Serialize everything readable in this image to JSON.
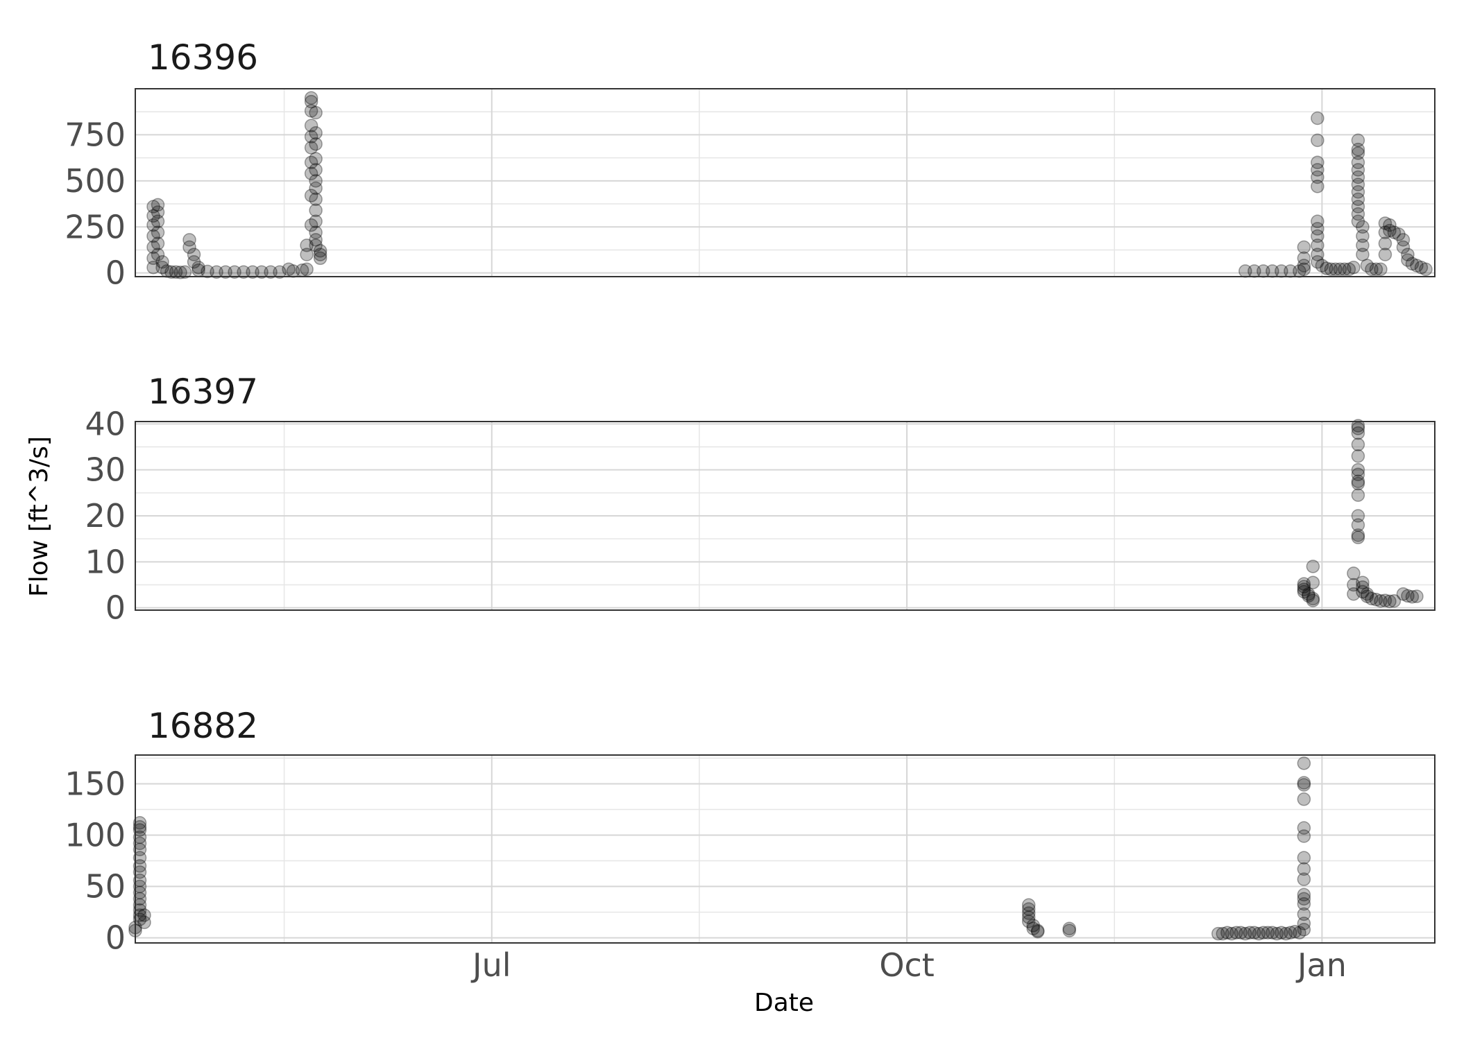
{
  "chart_data": {
    "type": "scatter",
    "xlabel": "Date",
    "ylabel": "Flow [ft^3/s]",
    "x_ticks": [
      "Jul",
      "Oct",
      "Jan"
    ],
    "x_tick_dates": [
      "2023-07-01",
      "2023-10-01",
      "2024-01-01"
    ],
    "xlim": [
      "2023-04-13",
      "2024-01-26"
    ],
    "grid": true,
    "point_color": "#000000",
    "point_opacity": 0.25,
    "facets": [
      {
        "title": "16396",
        "ylim": [
          -20,
          1000
        ],
        "yticks": [
          0,
          250,
          500,
          750
        ],
        "points": [
          [
            "2023-04-17",
            30
          ],
          [
            "2023-04-17",
            80
          ],
          [
            "2023-04-17",
            140
          ],
          [
            "2023-04-17",
            200
          ],
          [
            "2023-04-17",
            260
          ],
          [
            "2023-04-17",
            310
          ],
          [
            "2023-04-17",
            360
          ],
          [
            "2023-04-18",
            370
          ],
          [
            "2023-04-18",
            330
          ],
          [
            "2023-04-18",
            280
          ],
          [
            "2023-04-18",
            220
          ],
          [
            "2023-04-18",
            160
          ],
          [
            "2023-04-18",
            100
          ],
          [
            "2023-04-19",
            60
          ],
          [
            "2023-04-19",
            30
          ],
          [
            "2023-04-20",
            10
          ],
          [
            "2023-04-21",
            5
          ],
          [
            "2023-04-22",
            5
          ],
          [
            "2023-04-23",
            3
          ],
          [
            "2023-04-24",
            5
          ],
          [
            "2023-04-25",
            180
          ],
          [
            "2023-04-25",
            140
          ],
          [
            "2023-04-26",
            100
          ],
          [
            "2023-04-26",
            60
          ],
          [
            "2023-04-27",
            30
          ],
          [
            "2023-04-27",
            15
          ],
          [
            "2023-04-29",
            8
          ],
          [
            "2023-05-01",
            5
          ],
          [
            "2023-05-03",
            5
          ],
          [
            "2023-05-05",
            5
          ],
          [
            "2023-05-07",
            5
          ],
          [
            "2023-05-09",
            5
          ],
          [
            "2023-05-11",
            5
          ],
          [
            "2023-05-13",
            5
          ],
          [
            "2023-05-15",
            5
          ],
          [
            "2023-05-17",
            20
          ],
          [
            "2023-05-18",
            10
          ],
          [
            "2023-05-20",
            15
          ],
          [
            "2023-05-21",
            20
          ],
          [
            "2023-05-22",
            950
          ],
          [
            "2023-05-22",
            930
          ],
          [
            "2023-05-22",
            880
          ],
          [
            "2023-05-22",
            800
          ],
          [
            "2023-05-22",
            740
          ],
          [
            "2023-05-22",
            680
          ],
          [
            "2023-05-22",
            600
          ],
          [
            "2023-05-22",
            540
          ],
          [
            "2023-05-22",
            420
          ],
          [
            "2023-05-22",
            260
          ],
          [
            "2023-05-21",
            150
          ],
          [
            "2023-05-21",
            100
          ],
          [
            "2023-05-23",
            870
          ],
          [
            "2023-05-23",
            760
          ],
          [
            "2023-05-23",
            700
          ],
          [
            "2023-05-23",
            620
          ],
          [
            "2023-05-23",
            560
          ],
          [
            "2023-05-23",
            500
          ],
          [
            "2023-05-23",
            460
          ],
          [
            "2023-05-23",
            400
          ],
          [
            "2023-05-23",
            340
          ],
          [
            "2023-05-23",
            280
          ],
          [
            "2023-05-23",
            220
          ],
          [
            "2023-05-23",
            180
          ],
          [
            "2023-05-23",
            150
          ],
          [
            "2023-05-24",
            120
          ],
          [
            "2023-05-24",
            100
          ],
          [
            "2023-05-24",
            80
          ],
          [
            "2023-12-15",
            10
          ],
          [
            "2023-12-17",
            10
          ],
          [
            "2023-12-19",
            10
          ],
          [
            "2023-12-21",
            10
          ],
          [
            "2023-12-23",
            10
          ],
          [
            "2023-12-25",
            10
          ],
          [
            "2023-12-27",
            10
          ],
          [
            "2023-12-28",
            20
          ],
          [
            "2023-12-28",
            40
          ],
          [
            "2023-12-28",
            80
          ],
          [
            "2023-12-28",
            140
          ],
          [
            "2023-12-31",
            840
          ],
          [
            "2023-12-31",
            720
          ],
          [
            "2023-12-31",
            600
          ],
          [
            "2023-12-31",
            560
          ],
          [
            "2023-12-31",
            520
          ],
          [
            "2023-12-31",
            470
          ],
          [
            "2023-12-31",
            280
          ],
          [
            "2023-12-31",
            240
          ],
          [
            "2023-12-31",
            200
          ],
          [
            "2023-12-31",
            150
          ],
          [
            "2023-12-31",
            100
          ],
          [
            "2023-12-31",
            60
          ],
          [
            "2024-01-01",
            40
          ],
          [
            "2024-01-02",
            25
          ],
          [
            "2024-01-03",
            20
          ],
          [
            "2024-01-04",
            20
          ],
          [
            "2024-01-05",
            20
          ],
          [
            "2024-01-06",
            20
          ],
          [
            "2024-01-07",
            20
          ],
          [
            "2024-01-08",
            30
          ],
          [
            "2024-01-09",
            720
          ],
          [
            "2024-01-09",
            670
          ],
          [
            "2024-01-09",
            650
          ],
          [
            "2024-01-09",
            600
          ],
          [
            "2024-01-09",
            560
          ],
          [
            "2024-01-09",
            520
          ],
          [
            "2024-01-09",
            480
          ],
          [
            "2024-01-09",
            440
          ],
          [
            "2024-01-09",
            400
          ],
          [
            "2024-01-09",
            360
          ],
          [
            "2024-01-09",
            320
          ],
          [
            "2024-01-09",
            280
          ],
          [
            "2024-01-10",
            250
          ],
          [
            "2024-01-10",
            200
          ],
          [
            "2024-01-10",
            150
          ],
          [
            "2024-01-10",
            100
          ],
          [
            "2024-01-11",
            40
          ],
          [
            "2024-01-12",
            20
          ],
          [
            "2024-01-13",
            20
          ],
          [
            "2024-01-14",
            20
          ],
          [
            "2024-01-15",
            100
          ],
          [
            "2024-01-15",
            160
          ],
          [
            "2024-01-15",
            220
          ],
          [
            "2024-01-15",
            270
          ],
          [
            "2024-01-16",
            260
          ],
          [
            "2024-01-16",
            230
          ],
          [
            "2024-01-17",
            220
          ],
          [
            "2024-01-18",
            210
          ],
          [
            "2024-01-19",
            180
          ],
          [
            "2024-01-19",
            140
          ],
          [
            "2024-01-20",
            100
          ],
          [
            "2024-01-20",
            70
          ],
          [
            "2024-01-21",
            50
          ],
          [
            "2024-01-22",
            40
          ],
          [
            "2024-01-23",
            30
          ],
          [
            "2024-01-24",
            20
          ]
        ]
      },
      {
        "title": "16397",
        "ylim": [
          -0.5,
          40.5
        ],
        "yticks": [
          0,
          10,
          20,
          30,
          40
        ],
        "points": [
          [
            "2023-12-28",
            5.2
          ],
          [
            "2023-12-28",
            4.6
          ],
          [
            "2023-12-28",
            4.0
          ],
          [
            "2023-12-28",
            3.5
          ],
          [
            "2023-12-29",
            3.0
          ],
          [
            "2023-12-29",
            2.6
          ],
          [
            "2023-12-30",
            9.0
          ],
          [
            "2023-12-30",
            5.5
          ],
          [
            "2023-12-30",
            2.0
          ],
          [
            "2023-12-30",
            1.6
          ],
          [
            "2024-01-09",
            39.6
          ],
          [
            "2024-01-09",
            39.0
          ],
          [
            "2024-01-09",
            38.0
          ],
          [
            "2024-01-09",
            35.5
          ],
          [
            "2024-01-09",
            33.0
          ],
          [
            "2024-01-09",
            30.0
          ],
          [
            "2024-01-09",
            29.0
          ],
          [
            "2024-01-09",
            27.5
          ],
          [
            "2024-01-09",
            27.0
          ],
          [
            "2024-01-09",
            24.5
          ],
          [
            "2024-01-09",
            20.0
          ],
          [
            "2024-01-09",
            18.0
          ],
          [
            "2024-01-09",
            15.8
          ],
          [
            "2024-01-09",
            15.3
          ],
          [
            "2024-01-08",
            7.5
          ],
          [
            "2024-01-08",
            5.0
          ],
          [
            "2024-01-08",
            3.0
          ],
          [
            "2024-01-10",
            5.5
          ],
          [
            "2024-01-10",
            4.5
          ],
          [
            "2024-01-10",
            3.5
          ],
          [
            "2024-01-11",
            3.0
          ],
          [
            "2024-01-11",
            2.5
          ],
          [
            "2024-01-12",
            2.0
          ],
          [
            "2024-01-13",
            1.8
          ],
          [
            "2024-01-14",
            1.5
          ],
          [
            "2024-01-15",
            1.6
          ],
          [
            "2024-01-16",
            1.4
          ],
          [
            "2024-01-17",
            1.5
          ],
          [
            "2024-01-19",
            3.0
          ],
          [
            "2024-01-20",
            2.6
          ],
          [
            "2024-01-21",
            2.4
          ],
          [
            "2024-01-22",
            2.5
          ]
        ]
      },
      {
        "title": "16882",
        "ylim": [
          -5,
          178
        ],
        "yticks": [
          0,
          50,
          100,
          150
        ],
        "points": [
          [
            "2023-04-14",
            112
          ],
          [
            "2023-04-14",
            108
          ],
          [
            "2023-04-14",
            105
          ],
          [
            "2023-04-14",
            98
          ],
          [
            "2023-04-14",
            92
          ],
          [
            "2023-04-14",
            86
          ],
          [
            "2023-04-14",
            78
          ],
          [
            "2023-04-14",
            70
          ],
          [
            "2023-04-14",
            64
          ],
          [
            "2023-04-14",
            56
          ],
          [
            "2023-04-14",
            50
          ],
          [
            "2023-04-14",
            44
          ],
          [
            "2023-04-14",
            38
          ],
          [
            "2023-04-14",
            32
          ],
          [
            "2023-04-14",
            27
          ],
          [
            "2023-04-14",
            22
          ],
          [
            "2023-04-14",
            18
          ],
          [
            "2023-04-15",
            15
          ],
          [
            "2023-04-13",
            10
          ],
          [
            "2023-04-13",
            7
          ],
          [
            "2023-04-15",
            22
          ],
          [
            "2023-10-28",
            32
          ],
          [
            "2023-10-28",
            28
          ],
          [
            "2023-10-28",
            24
          ],
          [
            "2023-10-28",
            20
          ],
          [
            "2023-10-28",
            16
          ],
          [
            "2023-10-29",
            12
          ],
          [
            "2023-10-29",
            9
          ],
          [
            "2023-10-30",
            7
          ],
          [
            "2023-10-30",
            6
          ],
          [
            "2023-11-06",
            9
          ],
          [
            "2023-11-06",
            7
          ],
          [
            "2023-12-09",
            4
          ],
          [
            "2023-12-10",
            4
          ],
          [
            "2023-12-11",
            5
          ],
          [
            "2023-12-12",
            4
          ],
          [
            "2023-12-13",
            5
          ],
          [
            "2023-12-14",
            5
          ],
          [
            "2023-12-15",
            4
          ],
          [
            "2023-12-16",
            5
          ],
          [
            "2023-12-17",
            5
          ],
          [
            "2023-12-18",
            4
          ],
          [
            "2023-12-19",
            5
          ],
          [
            "2023-12-20",
            5
          ],
          [
            "2023-12-21",
            5
          ],
          [
            "2023-12-22",
            4
          ],
          [
            "2023-12-23",
            5
          ],
          [
            "2023-12-24",
            4
          ],
          [
            "2023-12-25",
            5
          ],
          [
            "2023-12-26",
            6
          ],
          [
            "2023-12-27",
            5
          ],
          [
            "2023-12-28",
            170
          ],
          [
            "2023-12-28",
            151
          ],
          [
            "2023-12-28",
            149
          ],
          [
            "2023-12-28",
            135
          ],
          [
            "2023-12-28",
            107
          ],
          [
            "2023-12-28",
            99
          ],
          [
            "2023-12-28",
            78
          ],
          [
            "2023-12-28",
            67
          ],
          [
            "2023-12-28",
            57
          ],
          [
            "2023-12-28",
            42
          ],
          [
            "2023-12-28",
            38
          ],
          [
            "2023-12-28",
            33
          ],
          [
            "2023-12-28",
            23
          ],
          [
            "2023-12-28",
            14
          ],
          [
            "2023-12-28",
            8
          ]
        ]
      }
    ]
  }
}
